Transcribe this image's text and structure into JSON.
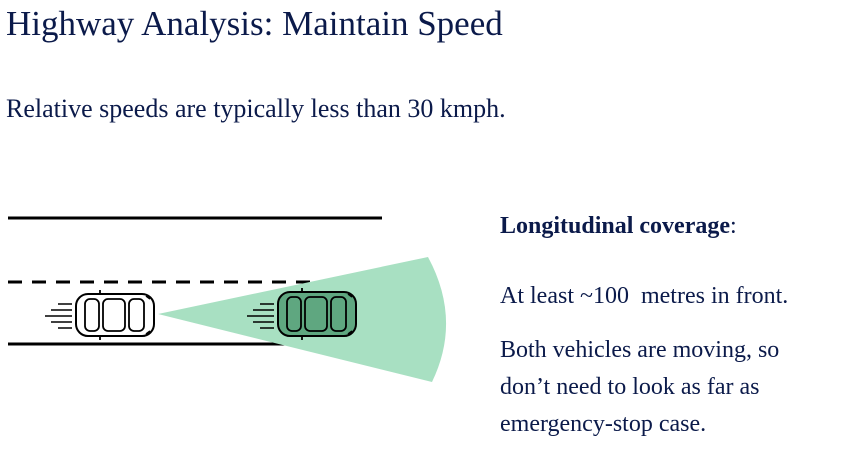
{
  "slide": {
    "title": "Highway Analysis: Maintain Speed",
    "subtitle": "Relative speeds are typically less than 30 kmph.",
    "coverage": {
      "heading": "Longitudinal coverage",
      "heading_suffix": ":",
      "range_text": "At least ~100  metres in front.",
      "note_line1": "Both vehicles are moving, so",
      "note_line2": "don’t need to look as far as",
      "note_line3": "emergency-stop case."
    }
  },
  "colors": {
    "text": "#0b1a4a",
    "sensor_cone": "#a8e0c2",
    "lead_car_fill": "#5fa780",
    "road_line": "#000000"
  },
  "icons": {
    "ego_car": "car-top-view-icon",
    "lead_car": "car-top-view-icon",
    "motion": "motion-lines-icon"
  }
}
